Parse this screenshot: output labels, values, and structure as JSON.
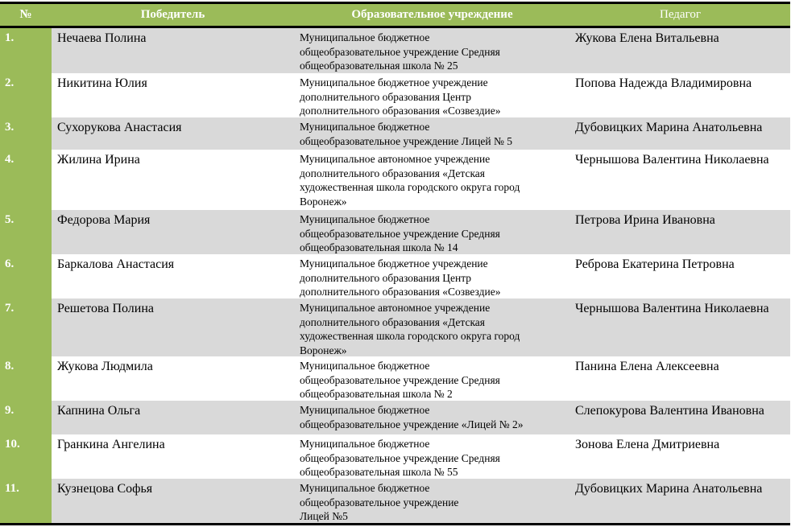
{
  "header": {
    "num": "№",
    "winner": "Победитель",
    "institution": "Образовательное  учреждение",
    "teacher": "Педагог"
  },
  "colors": {
    "header_bg": "#9BBB59",
    "stripe": "#D9D9D9"
  },
  "rows": [
    {
      "num": "1.",
      "winner": "Нечаева Полина",
      "institution": [
        "Муниципальное бюджетное",
        "общеобразовательное учреждение Средняя",
        "общеобразовательная школа № 25"
      ],
      "teacher": "Жукова Елена Витальевна"
    },
    {
      "num": "2.",
      "winner": "Никитина Юлия",
      "institution": [
        "Муниципальное бюджетное учреждение",
        "дополнительного образования Центр",
        "дополнительного образования «Созвездие»"
      ],
      "teacher": "Попова Надежда  Владимировна"
    },
    {
      "num": "3.",
      "winner": "Сухорукова Анастасия",
      "institution": [
        "Муниципальное бюджетное",
        "общеобразовательное учреждение Лицей № 5"
      ],
      "teacher": "Дубовицких Марина Анатольевна"
    },
    {
      "num": "4.",
      "winner": "Жилина Ирина",
      "institution": [
        "Муниципальное автономное учреждение",
        "дополнительного образования «Детская",
        "художественная школа городского округа город",
        "Воронеж»"
      ],
      "teacher": "Чернышова Валентина Николаевна"
    },
    {
      "num": "5.",
      "winner": "Федорова Мария",
      "institution": [
        "Муниципальное бюджетное",
        "общеобразовательное учреждение Средняя",
        "общеобразовательная школа № 14"
      ],
      "teacher": "Петрова Ирина Ивановна"
    },
    {
      "num": "6.",
      "winner": "Баркалова Анастасия",
      "institution": [
        "Муниципальное бюджетное учреждение",
        "дополнительного образования Центр",
        "дополнительного образования «Созвездие»"
      ],
      "teacher": "Реброва Екатерина Петровна"
    },
    {
      "num": "7.",
      "winner": "Решетова Полина",
      "institution": [
        "Муниципальное автономное учреждение",
        "дополнительного образования «Детская",
        "художественная школа городского округа город",
        "Воронеж»"
      ],
      "teacher": "Чернышова Валентина Николаевна"
    },
    {
      "num": "8.",
      "winner": "Жукова Людмила",
      "institution": [
        "Муниципальное бюджетное",
        "общеобразовательное учреждение Средняя",
        "общеобразовательная школа № 2"
      ],
      "teacher": "Панина Елена Алексеевна"
    },
    {
      "num": "9.",
      "winner": "Капнина Ольга",
      "institution": [
        "Муниципальное бюджетное",
        "общеобразовательное учреждение «Лицей № 2»"
      ],
      "teacher": "Слепокурова Валентина Ивановна"
    },
    {
      "num": "10.",
      "winner": "Гранкина Ангелина",
      "institution": [
        "Муниципальное бюджетное",
        "общеобразовательное учреждение Средняя",
        "общеобразовательная школа № 55"
      ],
      "teacher": "Зонова Елена Дмитриевна"
    },
    {
      "num": "11.",
      "winner": "Кузнецова Софья",
      "institution": [
        "Муниципальное бюджетное",
        "общеобразовательное учреждение",
        "Лицей №5"
      ],
      "teacher": "Дубовицких Марина Анатольевна"
    }
  ]
}
